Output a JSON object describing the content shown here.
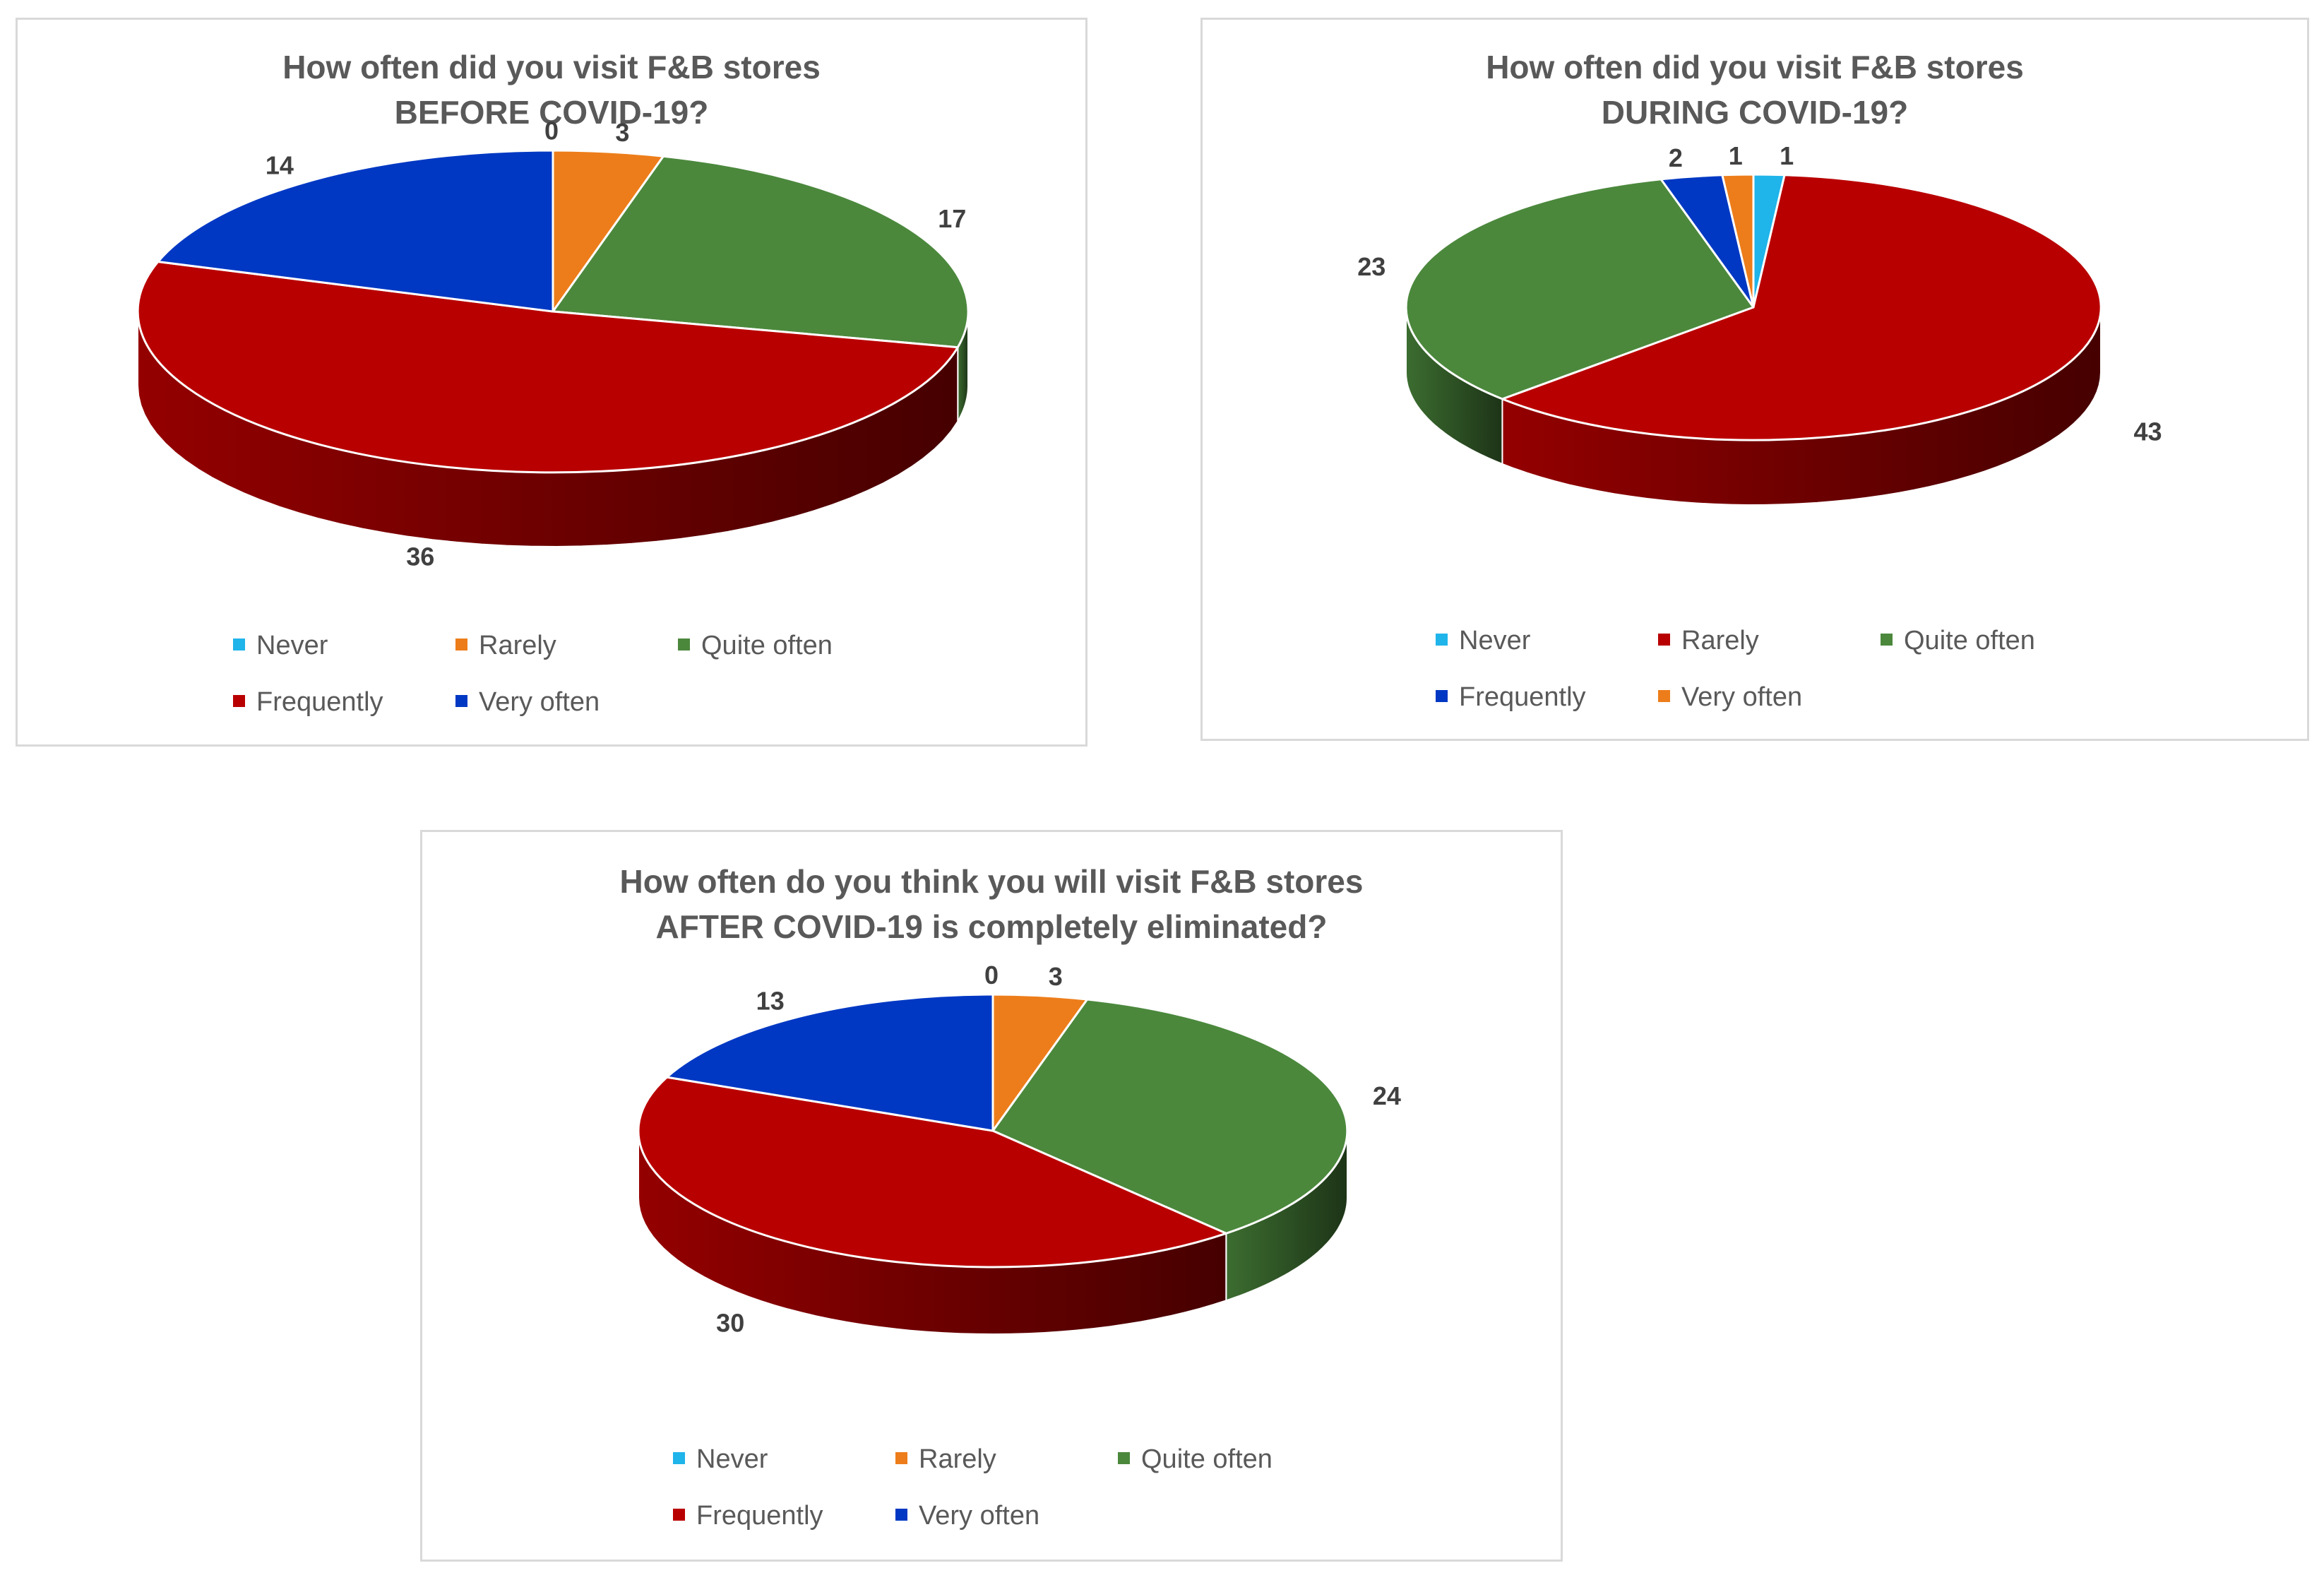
{
  "chart_data": [
    {
      "type": "pie",
      "title_lines": [
        "How often did you visit F&B stores",
        "BEFORE COVID-19?"
      ],
      "slices": [
        {
          "label": "Never",
          "value": 0,
          "color": "#1fb4ea"
        },
        {
          "label": "Rarely",
          "value": 3,
          "color": "#ed7d1a"
        },
        {
          "label": "Quite often",
          "value": 17,
          "color": "#4b883c"
        },
        {
          "label": "Frequently",
          "value": 36,
          "color": "#b90000"
        },
        {
          "label": "Very often",
          "value": 14,
          "color": "#0038c3"
        }
      ],
      "legend": [
        "Never",
        "Rarely",
        "Quite often",
        "Frequently",
        "Very often"
      ],
      "legend_placement": "bottom"
    },
    {
      "type": "pie",
      "title_lines": [
        "How often did you visit F&B stores",
        "DURING COVID-19?"
      ],
      "slices": [
        {
          "label": "Never",
          "value": 1,
          "color": "#1fb4ea"
        },
        {
          "label": "Rarely",
          "value": 43,
          "color": "#b90000"
        },
        {
          "label": "Quite often",
          "value": 23,
          "color": "#4b883c"
        },
        {
          "label": "Frequently",
          "value": 2,
          "color": "#0038c3"
        },
        {
          "label": "Very often",
          "value": 1,
          "color": "#ed7d1a"
        }
      ],
      "legend": [
        "Never",
        "Rarely",
        "Quite often",
        "Frequently",
        "Very often"
      ],
      "legend_placement": "bottom"
    },
    {
      "type": "pie",
      "title_lines": [
        "How often do you think you will visit F&B stores",
        "AFTER  COVID-19 is completely eliminated?"
      ],
      "slices": [
        {
          "label": "Never",
          "value": 0,
          "color": "#1fb4ea"
        },
        {
          "label": "Rarely",
          "value": 3,
          "color": "#ed7d1a"
        },
        {
          "label": "Quite often",
          "value": 24,
          "color": "#4b883c"
        },
        {
          "label": "Frequently",
          "value": 30,
          "color": "#b90000"
        },
        {
          "label": "Very often",
          "value": 13,
          "color": "#0038c3"
        }
      ],
      "legend": [
        "Never",
        "Rarely",
        "Quite often",
        "Frequently",
        "Very often"
      ],
      "legend_placement": "bottom"
    }
  ]
}
